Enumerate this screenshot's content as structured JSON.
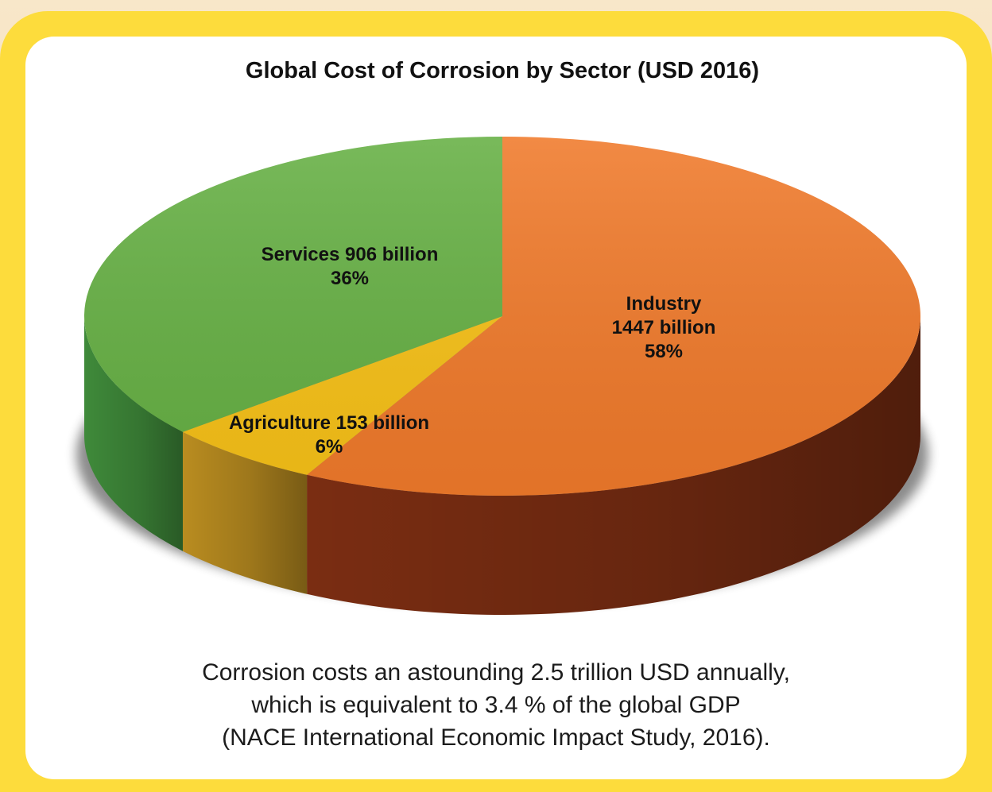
{
  "chart_data": {
    "type": "pie",
    "title": "Global Cost of Corrosion by Sector (USD 2016)",
    "unit": "billion USD",
    "slices": [
      {
        "name": "Industry",
        "value": 1447,
        "percent": 58,
        "label_lines": [
          "Industry",
          "1447 billion",
          "58%"
        ],
        "color": "#f07a2b",
        "side_color": "#7a2d12"
      },
      {
        "name": "Agriculture",
        "value": 153,
        "percent": 6,
        "label_lines": [
          "Agriculture 153 billion",
          "6%"
        ],
        "color": "#f7c117",
        "side_color": "#b98c20"
      },
      {
        "name": "Services",
        "value": 906,
        "percent": 36,
        "label_lines": [
          "Services 906 billion",
          "36%"
        ],
        "color": "#66b044",
        "side_color": "#3f8a3a"
      }
    ]
  },
  "caption": {
    "line1": "Corrosion costs an astounding 2.5 trillion USD annually,",
    "line2": "which is equivalent to 3.4 % of the global GDP",
    "line3": "(NACE International Economic Impact Study, 2016)."
  }
}
